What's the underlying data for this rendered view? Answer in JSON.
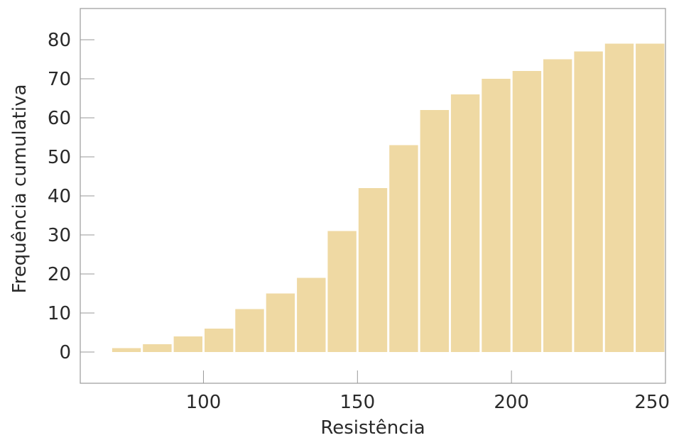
{
  "chart_data": {
    "type": "bar",
    "title": "",
    "xlabel": "Resistência",
    "ylabel": "Frequência cumulativa",
    "xlim": [
      60,
      250
    ],
    "ylim": [
      -8,
      88
    ],
    "xticks": [
      100,
      150,
      200,
      250
    ],
    "yticks": [
      0,
      10,
      20,
      30,
      40,
      50,
      60,
      70,
      80
    ],
    "bin_width": 10,
    "x": [
      75,
      85,
      95,
      105,
      115,
      125,
      135,
      145,
      155,
      165,
      175,
      185,
      195,
      205,
      215,
      225,
      235,
      245
    ],
    "values": [
      1,
      2,
      4,
      6,
      11,
      15,
      19,
      31,
      42,
      53,
      62,
      66,
      70,
      72,
      75,
      77,
      79,
      79
    ],
    "grid": false,
    "colors": {
      "bar": "#efd9a3",
      "axis": "#9a9a9a",
      "text": "#2a2a2a"
    }
  }
}
